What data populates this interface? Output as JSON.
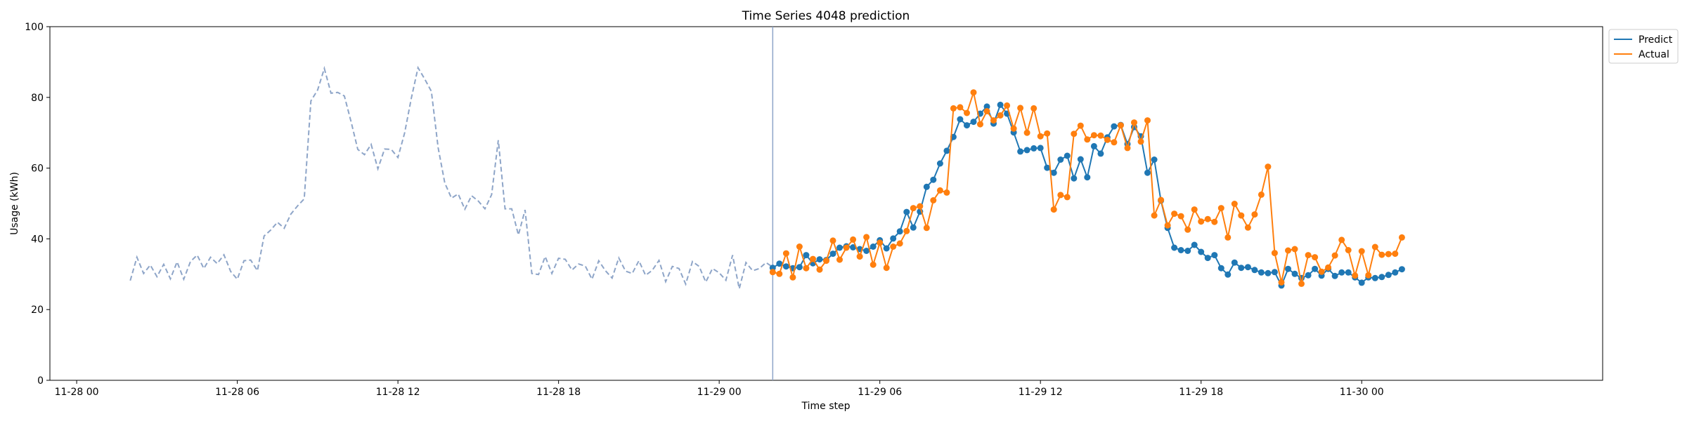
{
  "chart_data": {
    "type": "line",
    "title": "Time Series 4048 prediction",
    "xlabel": "Time step",
    "ylabel": "Usage (kWh)",
    "ylim": [
      0,
      100
    ],
    "xlim": [
      "2023-11-27T23:00",
      "2023-11-30T09:00"
    ],
    "yticks": [
      0,
      20,
      40,
      60,
      80,
      100
    ],
    "xticks": [
      {
        "t": "2023-11-28T00:00",
        "label": "11-28 00"
      },
      {
        "t": "2023-11-28T06:00",
        "label": "11-28 06"
      },
      {
        "t": "2023-11-28T12:00",
        "label": "11-28 12"
      },
      {
        "t": "2023-11-28T18:00",
        "label": "11-28 18"
      },
      {
        "t": "2023-11-29T00:00",
        "label": "11-29 00"
      },
      {
        "t": "2023-11-29T06:00",
        "label": "11-29 06"
      },
      {
        "t": "2023-11-29T12:00",
        "label": "11-29 12"
      },
      {
        "t": "2023-11-29T18:00",
        "label": "11-29 18"
      },
      {
        "t": "2023-11-30T00:00",
        "label": "11-30 00"
      }
    ],
    "forecast_start": "2023-11-29T02:00",
    "step_minutes": 15,
    "history": {
      "start": "2023-11-28T02:00",
      "style": "dashed",
      "color": "#8ea5c8",
      "values": [
        28.2,
        34.8,
        30.2,
        32.6,
        29.3,
        32.8,
        28.7,
        33.5,
        28.6,
        33.6,
        35.4,
        31.6,
        34.8,
        33.0,
        35.5,
        30.8,
        28.6,
        33.8,
        34.0,
        31.0,
        40.8,
        42.5,
        44.7,
        43.0,
        47.0,
        49.3,
        51.3,
        79.0,
        82.1,
        88.2,
        81.2,
        81.4,
        80.4,
        73.1,
        65.3,
        63.8,
        66.7,
        59.8,
        65.4,
        65.3,
        63.0,
        69.9,
        79.8,
        88.4,
        85.2,
        81.7,
        65.8,
        55.8,
        51.5,
        52.7,
        48.4,
        52.2,
        50.7,
        48.5,
        52.5,
        67.9,
        48.5,
        48.5,
        41.1,
        48.2,
        30.2,
        29.9,
        35.0,
        30.2,
        34.5,
        34.2,
        31.2,
        32.9,
        32.3,
        28.6,
        33.8,
        31.0,
        28.9,
        34.6,
        30.9,
        30.2,
        33.8,
        29.7,
        31.1,
        33.9,
        27.9,
        32.2,
        31.6,
        27.2,
        33.6,
        32.2,
        27.8,
        31.6,
        30.4,
        28.3,
        35.4,
        25.9,
        33.3,
        31.0,
        31.6,
        33.3,
        32.0
      ]
    },
    "forecast_x": {
      "start": "2023-11-29T02:00"
    },
    "series": [
      {
        "name": "Predict",
        "color": "#1f77b4",
        "values": [
          31.8,
          33.0,
          32.2,
          31.7,
          32.0,
          35.4,
          33.1,
          34.2,
          34.0,
          35.8,
          37.5,
          37.9,
          37.6,
          37.1,
          36.6,
          37.8,
          39.6,
          37.3,
          40.1,
          42.1,
          47.6,
          43.2,
          47.7,
          54.7,
          56.7,
          61.3,
          64.9,
          68.8,
          73.8,
          72.1,
          73.1,
          75.4,
          77.4,
          72.6,
          77.9,
          75.4,
          70.1,
          64.7,
          65.1,
          65.6,
          65.7,
          60.1,
          58.7,
          62.4,
          63.5,
          57.1,
          62.5,
          57.4,
          66.2,
          64.1,
          68.7,
          71.8,
          72.2,
          66.8,
          71.6,
          69.0,
          58.7,
          62.4,
          50.8,
          43.1,
          37.5,
          36.8,
          36.6,
          38.3,
          36.3,
          34.6,
          35.4,
          31.7,
          29.9,
          33.3,
          31.8,
          32.0,
          31.2,
          30.5,
          30.3,
          30.6,
          26.8,
          31.5,
          30.1,
          28.9,
          29.7,
          31.5,
          29.6,
          31.5,
          29.5,
          30.5,
          30.5,
          29.1,
          27.6,
          29.1,
          28.9,
          29.2,
          29.8,
          30.5,
          31.4
        ]
      },
      {
        "name": "Actual",
        "color": "#ff7f0e",
        "values": [
          30.6,
          30.1,
          35.9,
          29.1,
          37.8,
          31.7,
          34.3,
          31.3,
          33.8,
          39.5,
          34.1,
          37.5,
          39.8,
          35.0,
          40.5,
          32.7,
          38.9,
          31.8,
          37.8,
          38.7,
          42.2,
          48.7,
          49.2,
          43.1,
          50.9,
          53.7,
          53.1,
          76.9,
          77.2,
          75.6,
          81.4,
          72.4,
          76.1,
          73.5,
          74.9,
          77.7,
          71.2,
          77.0,
          70.0,
          76.9,
          69.0,
          69.8,
          48.3,
          52.4,
          51.8,
          69.7,
          72.0,
          68.1,
          69.3,
          69.2,
          68.0,
          67.3,
          72.1,
          65.7,
          72.9,
          67.5,
          73.5,
          46.6,
          51.0,
          43.8,
          47.1,
          46.4,
          42.6,
          48.3,
          44.9,
          45.6,
          44.8,
          48.7,
          40.4,
          49.9,
          46.6,
          43.2,
          46.9,
          52.5,
          60.4,
          36.0,
          27.7,
          36.7,
          37.1,
          27.3,
          35.4,
          34.8,
          30.7,
          31.9,
          35.3,
          39.7,
          36.8,
          29.6,
          36.5,
          29.7,
          37.7,
          35.5,
          35.7,
          35.8,
          40.4
        ]
      }
    ],
    "legend_position": "top-right",
    "grid": false
  }
}
